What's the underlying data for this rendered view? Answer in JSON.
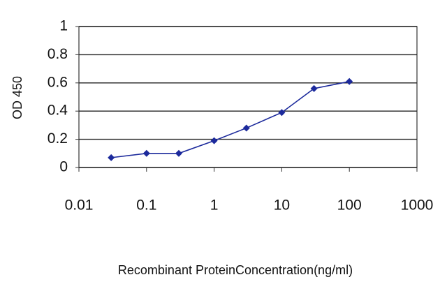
{
  "chart_data": {
    "type": "line",
    "xlabel": "Recombinant ProteinConcentration(ng/ml)",
    "ylabel": "OD 450",
    "x": [
      0.03,
      0.1,
      0.3,
      1,
      3,
      10,
      30,
      100
    ],
    "series": [
      {
        "name": "OD",
        "color": "#1c2a9c",
        "values": [
          0.07,
          0.1,
          0.1,
          0.19,
          0.28,
          0.39,
          0.56,
          0.61
        ]
      }
    ],
    "xscale": "log",
    "xlim": [
      0.01,
      1000
    ],
    "xticks": [
      0.01,
      0.1,
      1,
      10,
      100,
      1000
    ],
    "ylim": [
      0,
      1
    ],
    "yticks": [
      0,
      0.2,
      0.4,
      0.6,
      0.8,
      1
    ],
    "grid": true
  }
}
